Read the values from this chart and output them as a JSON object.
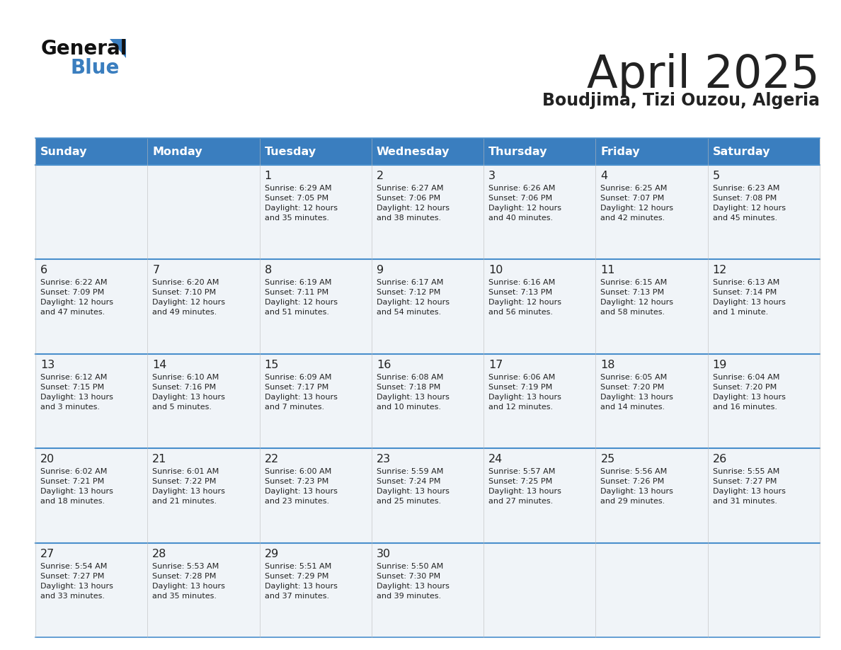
{
  "title": "April 2025",
  "subtitle": "Boudjima, Tizi Ouzou, Algeria",
  "header_bg": "#3a7ebf",
  "header_text_color": "#ffffff",
  "cell_bg_light": "#f0f4f8",
  "cell_bg_white": "#ffffff",
  "border_color": "#2a6099",
  "row_border_color": "#4a8fcc",
  "text_color": "#222222",
  "days_of_week": [
    "Sunday",
    "Monday",
    "Tuesday",
    "Wednesday",
    "Thursday",
    "Friday",
    "Saturday"
  ],
  "logo_general_color": "#111111",
  "logo_blue_color": "#3a7ebf",
  "logo_triangle_color": "#3a7ebf",
  "weeks": [
    [
      {
        "day": null,
        "info": null
      },
      {
        "day": null,
        "info": null
      },
      {
        "day": 1,
        "info": "Sunrise: 6:29 AM\nSunset: 7:05 PM\nDaylight: 12 hours\nand 35 minutes."
      },
      {
        "day": 2,
        "info": "Sunrise: 6:27 AM\nSunset: 7:06 PM\nDaylight: 12 hours\nand 38 minutes."
      },
      {
        "day": 3,
        "info": "Sunrise: 6:26 AM\nSunset: 7:06 PM\nDaylight: 12 hours\nand 40 minutes."
      },
      {
        "day": 4,
        "info": "Sunrise: 6:25 AM\nSunset: 7:07 PM\nDaylight: 12 hours\nand 42 minutes."
      },
      {
        "day": 5,
        "info": "Sunrise: 6:23 AM\nSunset: 7:08 PM\nDaylight: 12 hours\nand 45 minutes."
      }
    ],
    [
      {
        "day": 6,
        "info": "Sunrise: 6:22 AM\nSunset: 7:09 PM\nDaylight: 12 hours\nand 47 minutes."
      },
      {
        "day": 7,
        "info": "Sunrise: 6:20 AM\nSunset: 7:10 PM\nDaylight: 12 hours\nand 49 minutes."
      },
      {
        "day": 8,
        "info": "Sunrise: 6:19 AM\nSunset: 7:11 PM\nDaylight: 12 hours\nand 51 minutes."
      },
      {
        "day": 9,
        "info": "Sunrise: 6:17 AM\nSunset: 7:12 PM\nDaylight: 12 hours\nand 54 minutes."
      },
      {
        "day": 10,
        "info": "Sunrise: 6:16 AM\nSunset: 7:13 PM\nDaylight: 12 hours\nand 56 minutes."
      },
      {
        "day": 11,
        "info": "Sunrise: 6:15 AM\nSunset: 7:13 PM\nDaylight: 12 hours\nand 58 minutes."
      },
      {
        "day": 12,
        "info": "Sunrise: 6:13 AM\nSunset: 7:14 PM\nDaylight: 13 hours\nand 1 minute."
      }
    ],
    [
      {
        "day": 13,
        "info": "Sunrise: 6:12 AM\nSunset: 7:15 PM\nDaylight: 13 hours\nand 3 minutes."
      },
      {
        "day": 14,
        "info": "Sunrise: 6:10 AM\nSunset: 7:16 PM\nDaylight: 13 hours\nand 5 minutes."
      },
      {
        "day": 15,
        "info": "Sunrise: 6:09 AM\nSunset: 7:17 PM\nDaylight: 13 hours\nand 7 minutes."
      },
      {
        "day": 16,
        "info": "Sunrise: 6:08 AM\nSunset: 7:18 PM\nDaylight: 13 hours\nand 10 minutes."
      },
      {
        "day": 17,
        "info": "Sunrise: 6:06 AM\nSunset: 7:19 PM\nDaylight: 13 hours\nand 12 minutes."
      },
      {
        "day": 18,
        "info": "Sunrise: 6:05 AM\nSunset: 7:20 PM\nDaylight: 13 hours\nand 14 minutes."
      },
      {
        "day": 19,
        "info": "Sunrise: 6:04 AM\nSunset: 7:20 PM\nDaylight: 13 hours\nand 16 minutes."
      }
    ],
    [
      {
        "day": 20,
        "info": "Sunrise: 6:02 AM\nSunset: 7:21 PM\nDaylight: 13 hours\nand 18 minutes."
      },
      {
        "day": 21,
        "info": "Sunrise: 6:01 AM\nSunset: 7:22 PM\nDaylight: 13 hours\nand 21 minutes."
      },
      {
        "day": 22,
        "info": "Sunrise: 6:00 AM\nSunset: 7:23 PM\nDaylight: 13 hours\nand 23 minutes."
      },
      {
        "day": 23,
        "info": "Sunrise: 5:59 AM\nSunset: 7:24 PM\nDaylight: 13 hours\nand 25 minutes."
      },
      {
        "day": 24,
        "info": "Sunrise: 5:57 AM\nSunset: 7:25 PM\nDaylight: 13 hours\nand 27 minutes."
      },
      {
        "day": 25,
        "info": "Sunrise: 5:56 AM\nSunset: 7:26 PM\nDaylight: 13 hours\nand 29 minutes."
      },
      {
        "day": 26,
        "info": "Sunrise: 5:55 AM\nSunset: 7:27 PM\nDaylight: 13 hours\nand 31 minutes."
      }
    ],
    [
      {
        "day": 27,
        "info": "Sunrise: 5:54 AM\nSunset: 7:27 PM\nDaylight: 13 hours\nand 33 minutes."
      },
      {
        "day": 28,
        "info": "Sunrise: 5:53 AM\nSunset: 7:28 PM\nDaylight: 13 hours\nand 35 minutes."
      },
      {
        "day": 29,
        "info": "Sunrise: 5:51 AM\nSunset: 7:29 PM\nDaylight: 13 hours\nand 37 minutes."
      },
      {
        "day": 30,
        "info": "Sunrise: 5:50 AM\nSunset: 7:30 PM\nDaylight: 13 hours\nand 39 minutes."
      },
      {
        "day": null,
        "info": null
      },
      {
        "day": null,
        "info": null
      },
      {
        "day": null,
        "info": null
      }
    ]
  ]
}
